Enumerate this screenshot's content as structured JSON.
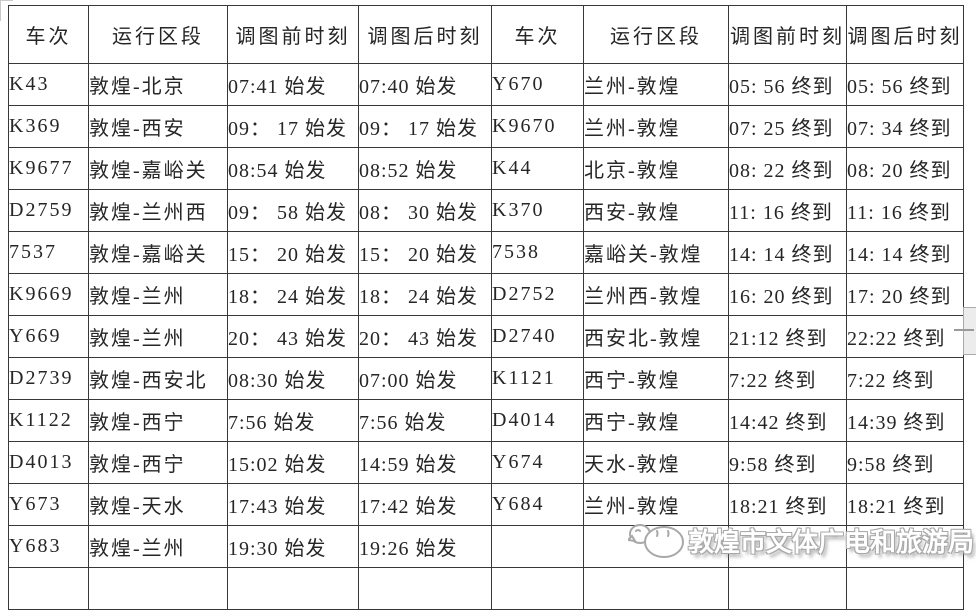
{
  "colors": {
    "background": "#ffffff",
    "table_border": "#383838",
    "text": "#262626",
    "watermark_outline": "#a8a8a8",
    "scrollbar_fill": "#ececec",
    "scrollbar_border": "#ababab"
  },
  "table": {
    "headers": [
      "车次",
      "运行区段",
      "调图前时刻",
      "调图后时刻",
      "车次",
      "运行区段",
      "调图前时刻",
      "调图后时刻"
    ],
    "rows": [
      [
        "K43",
        "敦煌-北京",
        "07:41 始发",
        "07:40 始发",
        "Y670",
        "兰州-敦煌",
        "05: 56 终到",
        "05: 56 终到"
      ],
      [
        "K369",
        "敦煌-西安",
        "09： 17 始发",
        "09： 17 始发",
        "K9670",
        "兰州-敦煌",
        "07: 25 终到",
        "07: 34 终到"
      ],
      [
        "K9677",
        "敦煌-嘉峪关",
        "08:54 始发",
        "08:52 始发",
        "K44",
        "北京-敦煌",
        "08: 22 终到",
        "08: 20 终到"
      ],
      [
        "D2759",
        "敦煌-兰州西",
        "09： 58 始发",
        "08： 30 始发",
        "K370",
        "西安-敦煌",
        "11: 16 终到",
        "11: 16 终到"
      ],
      [
        "7537",
        "敦煌-嘉峪关",
        "15： 20 始发",
        "15： 20 始发",
        "7538",
        "嘉峪关-敦煌",
        "14: 14 终到",
        "14: 14 终到"
      ],
      [
        "K9669",
        "敦煌-兰州",
        "18： 24 始发",
        "18： 24 始发",
        "D2752",
        "兰州西-敦煌",
        "16: 20 终到",
        "17: 20 终到"
      ],
      [
        "Y669",
        "敦煌-兰州",
        "20： 43 始发",
        "20： 43 始发",
        "D2740",
        "西安北-敦煌",
        "21:12 终到",
        "22:22 终到"
      ],
      [
        "D2739",
        "敦煌-西安北",
        "08:30 始发",
        "07:00 始发",
        "K1121",
        "西宁-敦煌",
        "7:22 终到",
        "7:22 终到"
      ],
      [
        "K1122",
        "敦煌-西宁",
        "7:56 始发",
        "7:56 始发",
        "D4014",
        "西宁-敦煌",
        "14:42 终到",
        "14:39 终到"
      ],
      [
        "D4013",
        "敦煌-西宁",
        "15:02 始发",
        "14:59 始发",
        "Y674",
        "天水-敦煌",
        "9:58 终到",
        "9:58 终到"
      ],
      [
        "Y673",
        "敦煌-天水",
        "17:43 始发",
        "17:42 始发",
        "Y684",
        "兰州-敦煌",
        "18:21 终到",
        "18:21 终到"
      ],
      [
        "Y683",
        "敦煌-兰州",
        "19:30 始发",
        "19:26 始发",
        "",
        "",
        "",
        ""
      ],
      [
        "",
        "",
        "",
        "",
        "",
        "",
        "",
        ""
      ]
    ]
  },
  "watermark": {
    "text": "敦煌市文体广电和旅游局",
    "logo_icon": "mascot-cartoon-icon"
  }
}
